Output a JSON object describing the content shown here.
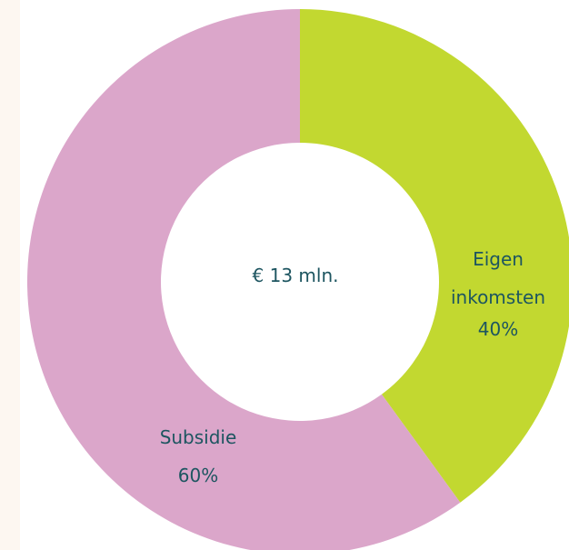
{
  "chart_data": {
    "type": "pie",
    "variant": "donut",
    "center_text": "€ 13 mln.",
    "slices": [
      {
        "label_lines": [
          "Eigen",
          "inkomsten"
        ],
        "value": 40,
        "value_text": "40%",
        "color": "#c2d830",
        "label_color": "#1d5560"
      },
      {
        "label_lines": [
          "Subsidie"
        ],
        "value": 60,
        "value_text": "60%",
        "color": "#dba6ca",
        "label_color": "#1d5560"
      }
    ],
    "start": "top",
    "direction": "clockwise"
  },
  "colors": {
    "text": "#1d5560",
    "background": "#ffffff",
    "side_strip": "#fdf7f1"
  }
}
